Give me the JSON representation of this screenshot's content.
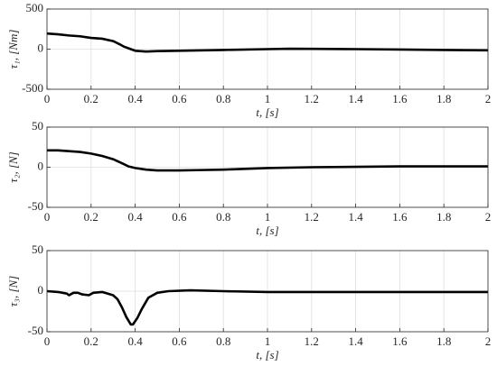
{
  "chart_data": [
    {
      "type": "line",
      "ylabel": "τ₁, [Nm]",
      "xlabel": "t, [s]",
      "color": "#000000",
      "grid": true,
      "x": [
        0,
        0.05,
        0.1,
        0.15,
        0.2,
        0.25,
        0.3,
        0.33,
        0.35,
        0.38,
        0.4,
        0.45,
        0.5,
        0.6,
        0.8,
        1.0,
        1.1,
        1.2,
        1.4,
        1.6,
        1.8,
        2.0
      ],
      "values": [
        195,
        185,
        170,
        160,
        140,
        130,
        100,
        60,
        30,
        0,
        -20,
        -30,
        -25,
        -20,
        -10,
        0,
        5,
        3,
        0,
        -5,
        -10,
        -15
      ],
      "xlim": [
        0,
        2
      ],
      "xticks": [
        0,
        0.2,
        0.4,
        0.6,
        0.8,
        1,
        1.2,
        1.4,
        1.6,
        1.8,
        2
      ],
      "ylim": [
        -500,
        500
      ],
      "yticks": [
        -500,
        0,
        500
      ]
    },
    {
      "type": "line",
      "ylabel": "τ₂, [N]",
      "xlabel": "t, [s]",
      "color": "#000000",
      "grid": true,
      "x": [
        0,
        0.05,
        0.1,
        0.15,
        0.2,
        0.25,
        0.3,
        0.34,
        0.37,
        0.4,
        0.45,
        0.5,
        0.6,
        0.7,
        0.8,
        1.0,
        1.2,
        1.4,
        1.6,
        1.8,
        2.0
      ],
      "values": [
        21,
        21,
        20,
        19,
        17,
        14,
        10,
        5,
        1,
        -1,
        -3,
        -4,
        -4,
        -3.5,
        -3,
        -1,
        0,
        0.5,
        1,
        1,
        1
      ],
      "xlim": [
        0,
        2
      ],
      "xticks": [
        0,
        0.2,
        0.4,
        0.6,
        0.8,
        1,
        1.2,
        1.4,
        1.6,
        1.8,
        2
      ],
      "ylim": [
        -50,
        50
      ],
      "yticks": [
        -50,
        0,
        50
      ]
    },
    {
      "type": "line",
      "ylabel": "τ₃, [N]",
      "xlabel": "t, [s]",
      "color": "#000000",
      "grid": true,
      "x": [
        0,
        0.05,
        0.09,
        0.1,
        0.12,
        0.14,
        0.16,
        0.19,
        0.21,
        0.25,
        0.3,
        0.32,
        0.34,
        0.36,
        0.38,
        0.39,
        0.41,
        0.43,
        0.46,
        0.5,
        0.55,
        0.65,
        0.8,
        1.0,
        1.5,
        2.0
      ],
      "values": [
        0,
        -1,
        -3,
        -5,
        -2,
        -2,
        -4,
        -5,
        -2,
        -1,
        -5,
        -10,
        -20,
        -32,
        -41,
        -41,
        -33,
        -22,
        -8,
        -2,
        0,
        1,
        0,
        -1,
        -1,
        -1
      ],
      "xlim": [
        0,
        2
      ],
      "xticks": [
        0,
        0.2,
        0.4,
        0.6,
        0.8,
        1,
        1.2,
        1.4,
        1.6,
        1.8,
        2
      ],
      "ylim": [
        -50,
        50
      ],
      "yticks": [
        -50,
        0,
        50
      ]
    }
  ]
}
